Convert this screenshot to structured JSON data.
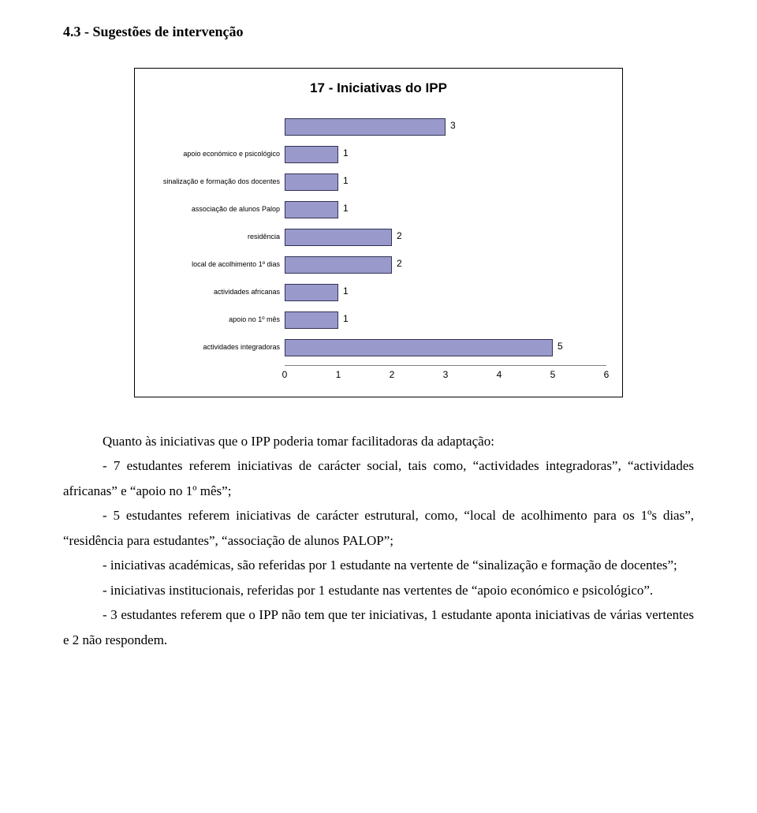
{
  "section_title": "4.3 - Sugestões de intervenção",
  "chart": {
    "type": "bar-horizontal",
    "title": "17 - Iniciativas do IPP",
    "bar_color": "#9999cc",
    "bar_border_color": "#333355",
    "background_color": "#ffffff",
    "max_value": 6,
    "x_ticks": [
      0,
      1,
      2,
      3,
      4,
      5,
      6
    ],
    "x_tick_fontsize": 12,
    "label_fontsize": 9,
    "value_fontsize": 12,
    "bars": [
      {
        "label": "",
        "value": 3
      },
      {
        "label": "apoio económico e psicológico",
        "value": 1
      },
      {
        "label": "sinalização e formação dos docentes",
        "value": 1
      },
      {
        "label": "associação de alunos Palop",
        "value": 1
      },
      {
        "label": "residência",
        "value": 2
      },
      {
        "label": "local de acolhimento 1º dias",
        "value": 2
      },
      {
        "label": "actividades africanas",
        "value": 1
      },
      {
        "label": "apoio no 1º mês",
        "value": 1
      },
      {
        "label": "actividades integradoras",
        "value": 5
      }
    ]
  },
  "paragraphs": {
    "p1": "Quanto às iniciativas que o IPP poderia tomar facilitadoras da adaptação:",
    "p2": "- 7 estudantes referem iniciativas de carácter social, tais como, “actividades integradoras”, “actividades africanas” e “apoio no 1º mês”;",
    "p3": "- 5 estudantes referem iniciativas de carácter estrutural, como, “local de acolhimento para os 1ºs dias”, “residência para estudantes”, “associação de alunos PALOP”;",
    "p4": "- iniciativas académicas, são referidas por 1 estudante na vertente de “sinalização e formação de docentes”;",
    "p5": "- iniciativas institucionais, referidas por 1 estudante nas vertentes de “apoio económico e psicológico”.",
    "p6": "- 3 estudantes referem que o IPP não tem que ter iniciativas, 1 estudante aponta iniciativas de várias vertentes e 2 não respondem."
  }
}
